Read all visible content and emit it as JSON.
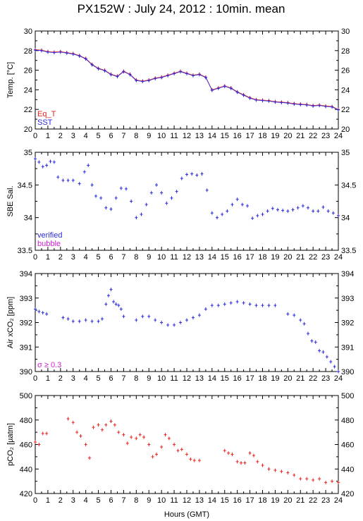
{
  "title": "PX152W : July 24, 2012 : 10min. mean",
  "xaxis": {
    "label": "Hours (GMT)",
    "ticks": [
      "0",
      "1",
      "2",
      "3",
      "4",
      "5",
      "6",
      "7",
      "8",
      "9",
      "10",
      "11",
      "12",
      "13",
      "14",
      "15",
      "16",
      "17",
      "18",
      "19",
      "20",
      "21",
      "22",
      "23",
      "24"
    ],
    "range": [
      0,
      24
    ]
  },
  "colors": {
    "red": "#e8231f",
    "blue": "#2a2ae0",
    "magenta": "#d21ed2",
    "black": "#000000"
  },
  "chart_data": [
    {
      "type": "line",
      "ylabel": "Temp. [°C]",
      "ylim": [
        20,
        30
      ],
      "yticks": [
        "20",
        "22",
        "24",
        "26",
        "28",
        "30"
      ],
      "legend": [
        {
          "name": "Eq_T",
          "color": "#e8231f"
        },
        {
          "name": "SST",
          "color": "#2a2ae0"
        }
      ],
      "x": [
        0,
        0.5,
        1,
        1.5,
        2,
        2.5,
        3,
        3.5,
        4,
        4.5,
        5,
        5.5,
        6,
        6.5,
        7,
        7.5,
        8,
        8.5,
        9,
        9.5,
        10,
        10.5,
        11,
        11.5,
        12,
        12.5,
        13,
        13.5,
        14,
        14.5,
        15,
        15.5,
        16,
        16.5,
        17,
        17.5,
        18,
        18.5,
        19,
        19.5,
        20,
        20.5,
        21,
        21.5,
        22,
        22.5,
        23,
        23.5,
        24
      ],
      "series": [
        {
          "name": "Eq_T",
          "color": "#e8231f",
          "values": [
            28.1,
            28.05,
            27.9,
            27.85,
            27.9,
            27.8,
            27.7,
            27.5,
            27.2,
            26.6,
            26.2,
            26.0,
            25.6,
            25.4,
            25.9,
            25.6,
            25.0,
            24.9,
            25.0,
            25.2,
            25.3,
            25.5,
            25.7,
            25.9,
            25.7,
            25.5,
            25.6,
            25.3,
            24.0,
            24.2,
            24.4,
            24.2,
            23.8,
            23.5,
            23.2,
            23.0,
            22.95,
            22.9,
            22.8,
            22.75,
            22.7,
            22.6,
            22.55,
            22.5,
            22.4,
            22.45,
            22.35,
            22.3,
            22.0
          ]
        },
        {
          "name": "SST",
          "color": "#2a2ae0",
          "values": [
            28.05,
            28.0,
            27.85,
            27.8,
            27.85,
            27.75,
            27.65,
            27.45,
            27.15,
            26.55,
            26.15,
            25.95,
            25.55,
            25.35,
            25.85,
            25.55,
            24.95,
            24.85,
            24.95,
            25.15,
            25.25,
            25.45,
            25.65,
            25.85,
            25.65,
            25.45,
            25.55,
            25.25,
            23.95,
            24.15,
            24.35,
            24.15,
            23.75,
            23.45,
            23.15,
            22.95,
            22.9,
            22.85,
            22.75,
            22.7,
            22.65,
            22.55,
            22.5,
            22.45,
            22.35,
            22.4,
            22.3,
            22.25,
            21.95
          ]
        }
      ]
    },
    {
      "type": "scatter",
      "ylabel": "SBE Sal.",
      "ylim": [
        33.5,
        35
      ],
      "yticks": [
        "33.5",
        "34",
        "34.5",
        "35"
      ],
      "legend": [
        {
          "name": "verified",
          "color": "#2a2ae0"
        },
        {
          "name": "bubble",
          "color": "#d21ed2"
        }
      ],
      "x": [
        0,
        0.3,
        0.6,
        0.9,
        1.2,
        1.5,
        1.8,
        2.2,
        2.6,
        3.0,
        3.5,
        3.9,
        4.2,
        4.5,
        4.8,
        5.2,
        5.6,
        6.0,
        6.4,
        6.8,
        7.2,
        7.6,
        8.0,
        8.4,
        8.8,
        9.2,
        9.6,
        10.0,
        10.4,
        10.8,
        11.2,
        11.6,
        12.0,
        12.4,
        12.8,
        13.2,
        13.6,
        14.0,
        14.4,
        14.8,
        15.2,
        15.6,
        16.0,
        16.4,
        16.8,
        17.2,
        17.6,
        18.0,
        18.4,
        18.8,
        19.2,
        19.6,
        20.0,
        20.4,
        20.8,
        21.2,
        21.6,
        22.0,
        22.4,
        22.8,
        23.2,
        23.6,
        24.0
      ],
      "series": [
        {
          "name": "verified",
          "color": "#2a2ae0",
          "values": [
            34.9,
            34.85,
            34.78,
            34.8,
            34.86,
            34.85,
            34.62,
            34.57,
            34.57,
            34.57,
            34.52,
            34.7,
            34.8,
            34.5,
            34.33,
            34.3,
            34.15,
            34.13,
            34.3,
            34.45,
            34.44,
            34.25,
            34.0,
            34.05,
            34.2,
            34.38,
            34.5,
            34.38,
            34.22,
            34.3,
            34.4,
            34.6,
            34.66,
            34.67,
            34.65,
            34.67,
            34.42,
            34.07,
            34.0,
            34.05,
            34.1,
            34.2,
            34.28,
            34.2,
            34.18,
            33.99,
            34.03,
            34.05,
            34.1,
            34.14,
            34.12,
            34.11,
            34.1,
            34.12,
            34.15,
            34.18,
            34.15,
            34.1,
            34.1,
            34.16,
            34.1,
            34.07,
            34.03
          ]
        }
      ]
    },
    {
      "type": "scatter",
      "ylabel": "Air xCO₂ [ppm]",
      "ylim": [
        390,
        394
      ],
      "yticks": [
        "390",
        "391",
        "392",
        "393",
        "394"
      ],
      "legend": [
        {
          "name": "σ ≥ 0.3",
          "color": "#d21ed2"
        }
      ],
      "x": [
        0,
        0.3,
        0.6,
        0.9,
        2.2,
        2.6,
        3.0,
        3.5,
        4.0,
        4.5,
        5.0,
        5.3,
        5.6,
        5.8,
        6.0,
        6.2,
        6.4,
        6.6,
        6.8,
        7.0,
        8.0,
        8.5,
        9.0,
        9.5,
        10.0,
        10.5,
        11.0,
        11.5,
        12.0,
        12.5,
        13.0,
        13.5,
        14.0,
        14.5,
        15.0,
        15.5,
        16.0,
        16.5,
        17.0,
        17.5,
        18.0,
        18.5,
        19.0,
        20.0,
        20.5,
        21.0,
        21.3,
        21.6,
        21.9,
        22.2,
        22.5,
        22.8,
        23.1,
        23.4,
        23.7,
        24.0
      ],
      "series": [
        {
          "name": "Air xCO2",
          "color": "#2a2ae0",
          "values": [
            392.55,
            392.45,
            392.4,
            392.35,
            392.2,
            392.15,
            392.05,
            392.05,
            392.1,
            392.05,
            392.05,
            392.15,
            392.75,
            393.1,
            393.35,
            392.85,
            392.75,
            392.7,
            392.55,
            392.25,
            392.1,
            392.25,
            392.25,
            392.1,
            392.0,
            391.9,
            391.9,
            392.0,
            392.1,
            392.2,
            392.3,
            392.55,
            392.7,
            392.7,
            392.75,
            392.8,
            392.85,
            392.8,
            392.75,
            392.7,
            392.7,
            392.7,
            392.7,
            392.35,
            392.3,
            392.1,
            391.95,
            391.55,
            391.25,
            391.2,
            390.85,
            390.8,
            390.6,
            390.4,
            390.2,
            390.0
          ]
        }
      ]
    },
    {
      "type": "scatter",
      "ylabel": "pCO₂ [µatm]",
      "ylim": [
        420,
        500
      ],
      "yticks": [
        "420",
        "440",
        "460",
        "480",
        "500"
      ],
      "x": [
        0,
        0.3,
        0.6,
        0.9,
        2.6,
        3.0,
        3.3,
        3.6,
        4.0,
        4.3,
        4.6,
        5.0,
        5.3,
        5.6,
        6.0,
        6.3,
        6.6,
        7.0,
        7.3,
        7.6,
        8.0,
        8.3,
        8.6,
        9.0,
        9.3,
        9.6,
        10.0,
        10.3,
        10.6,
        11.0,
        11.3,
        11.6,
        12.0,
        12.3,
        12.6,
        13.0,
        15.0,
        15.3,
        15.6,
        16.0,
        16.3,
        16.6,
        17.0,
        17.3,
        17.6,
        18.0,
        18.5,
        19.0,
        19.5,
        20.0,
        20.5,
        21.0,
        21.5,
        22.0,
        22.5,
        23.0,
        23.5,
        24.0
      ],
      "series": [
        {
          "name": "pCO2",
          "color": "#e8231f",
          "values": [
            462,
            460,
            469,
            469,
            481,
            478,
            470,
            467,
            460,
            449,
            474,
            476,
            472,
            476,
            479,
            476,
            470,
            468,
            461,
            466,
            465,
            468,
            466,
            460,
            450,
            452,
            458,
            468,
            465,
            460,
            455,
            456,
            452,
            448,
            447,
            447,
            455,
            453,
            452,
            446,
            445,
            445,
            453,
            451,
            446,
            443,
            440,
            439,
            438,
            437,
            435,
            432,
            432,
            431,
            432,
            429,
            430,
            429
          ]
        }
      ]
    }
  ]
}
